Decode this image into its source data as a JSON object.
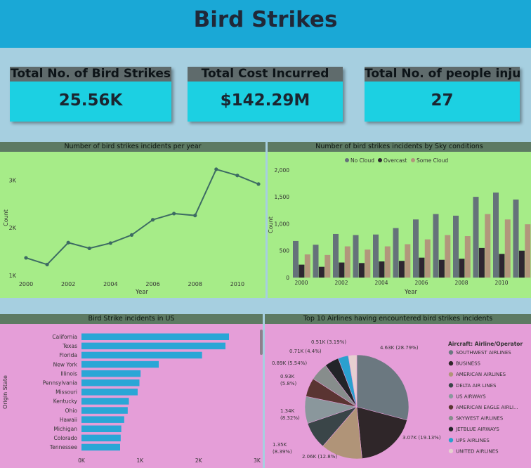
{
  "title": "Bird Strikes",
  "kpis": [
    {
      "label": "Total No. of Bird Strikes",
      "value": "25.56K"
    },
    {
      "label": "Total Cost Incurred",
      "value": "$142.29M"
    },
    {
      "label": "Total No. of people inju...",
      "value": "27"
    }
  ],
  "chart_data": [
    {
      "type": "line",
      "title": "Number of bird strikes incidents per year",
      "xlabel": "Year",
      "ylabel": "Count",
      "x": [
        2000,
        2001,
        2002,
        2003,
        2004,
        2005,
        2006,
        2007,
        2008,
        2009,
        2010,
        2011
      ],
      "values": [
        1370,
        1230,
        1690,
        1570,
        1680,
        1850,
        2170,
        2300,
        2260,
        3230,
        3100,
        2920
      ],
      "xticks": [
        "2000",
        "2002",
        "2004",
        "2006",
        "2008",
        "2010"
      ],
      "yticks": [
        "1K",
        "2K",
        "3K"
      ],
      "ylim": [
        1000,
        3450
      ],
      "color": "#3d6b63"
    },
    {
      "type": "bar",
      "title": "Number of bird strikes incidents by Sky conditions",
      "xlabel": "Year",
      "ylabel": "Count",
      "legend_position": "top",
      "x": [
        2000,
        2001,
        2002,
        2003,
        2004,
        2005,
        2006,
        2007,
        2008,
        2009,
        2010,
        2011
      ],
      "series": [
        {
          "name": "No Cloud",
          "color": "#65727a",
          "values": [
            680,
            610,
            810,
            790,
            800,
            920,
            1080,
            1180,
            1150,
            1500,
            1580,
            1450
          ]
        },
        {
          "name": "Overcast",
          "color": "#2d2630",
          "values": [
            240,
            200,
            280,
            270,
            300,
            310,
            370,
            330,
            350,
            550,
            440,
            500
          ]
        },
        {
          "name": "Some Cloud",
          "color": "#b2967c",
          "values": [
            430,
            420,
            580,
            520,
            580,
            620,
            710,
            790,
            770,
            1180,
            1080,
            990
          ]
        }
      ],
      "xticks": [
        "2000",
        "2002",
        "2004",
        "2006",
        "2008",
        "2010"
      ],
      "yticks": [
        "0",
        "500",
        "1,000",
        "1,500",
        "2,000"
      ],
      "ylim": [
        0,
        2050
      ]
    },
    {
      "type": "bar",
      "orientation": "horizontal",
      "title": "Bird Strike incidents in US",
      "ylabel": "Origin State",
      "categories": [
        "California",
        "Texas",
        "Florida",
        "New York",
        "Illinois",
        "Pennsylvania",
        "Missouri",
        "Kentucky",
        "Ohio",
        "Hawaii",
        "Michigan",
        "Colorado",
        "Tennessee"
      ],
      "values": [
        2520,
        2460,
        2060,
        1320,
        1010,
        990,
        960,
        810,
        790,
        730,
        680,
        670,
        660
      ],
      "xticks": [
        "0K",
        "1K",
        "2K",
        "3K"
      ],
      "xlim": [
        0,
        3000
      ],
      "color": "#2aa6d6"
    },
    {
      "type": "pie",
      "title": "Top 10 Airlines having encountered bird strikes incidents",
      "legend_title": "Aircraft: Airline/Operator",
      "slices": [
        {
          "name": "SOUTHWEST AIRLINES",
          "value": 4630,
          "label": "4.63K (28.79%)",
          "color": "#6b7880"
        },
        {
          "name": "BUSINESS",
          "value": 3070,
          "label": "3.07K (19.13%)",
          "color": "#2f2629"
        },
        {
          "name": "AMERICAN AIRLINES",
          "value": 2060,
          "label": "2.06K (12.8%)",
          "color": "#b09478"
        },
        {
          "name": "DELTA AIR LINES",
          "value": 1350,
          "label": "1.35K (8.39%)",
          "color": "#3a4548"
        },
        {
          "name": "US AIRWAYS",
          "value": 1340,
          "label": "1.34K (8.32%)",
          "color": "#8a979c"
        },
        {
          "name": "AMERICAN EAGLE AIRLI...",
          "value": 930,
          "label": "0.93K (5.8%)",
          "color": "#5a3432"
        },
        {
          "name": "SKYWEST AIRLINES",
          "value": 890,
          "label": "0.89K (5.54%)",
          "color": "#878d8c"
        },
        {
          "name": "JETBLUE AIRWAYS",
          "value": 710,
          "label": "0.71K (4.4%)",
          "color": "#222428"
        },
        {
          "name": "UPS AIRLINES",
          "value": 510,
          "label": "0.51K (3.19%)",
          "color": "#2aa0cf"
        },
        {
          "name": "UNITED AIRLINES",
          "value": 420,
          "label": "",
          "color": "#e6cfd0"
        }
      ]
    }
  ]
}
